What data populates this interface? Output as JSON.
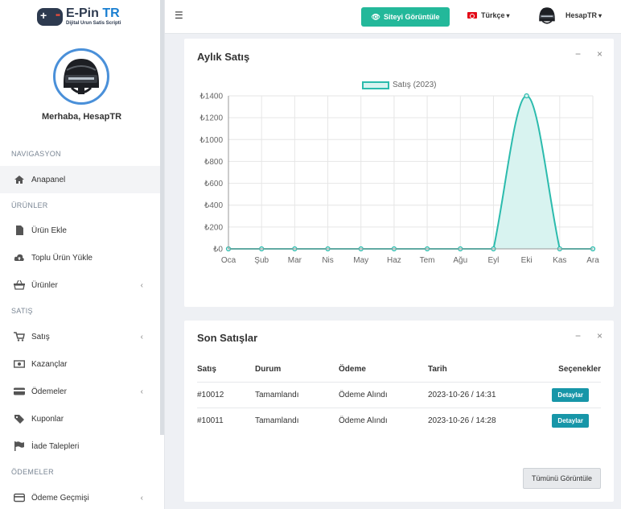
{
  "brand": {
    "title_main": "E-Pin ",
    "title_accent": "TR",
    "subtitle": "Dijital Urun Satis Scripti"
  },
  "sidebar": {
    "welcome": "Merhaba, HesapTR",
    "sections": [
      "NAVIGASYON",
      "ÜRÜNLER",
      "SATIŞ",
      "ÖDEMELER"
    ],
    "items": [
      {
        "label": "Anapanel",
        "icon": "home-icon"
      },
      {
        "label": "Ürün Ekle",
        "icon": "file-icon"
      },
      {
        "label": "Toplu Ürün Yükle",
        "icon": "cloud-upload-icon"
      },
      {
        "label": "Ürünler",
        "icon": "basket-icon"
      },
      {
        "label": "Satış",
        "icon": "cart-icon"
      },
      {
        "label": "Kazançlar",
        "icon": "money-icon"
      },
      {
        "label": "Ödemeler",
        "icon": "credit-card-icon"
      },
      {
        "label": "Kuponlar",
        "icon": "tag-icon"
      },
      {
        "label": "İade Talepleri",
        "icon": "flag-icon"
      },
      {
        "label": "Ödeme Geçmişi",
        "icon": "credit-card-icon"
      }
    ]
  },
  "topbar": {
    "view_site": "Siteyi Görüntüle",
    "language": "Türkçe",
    "username": "HesapTR"
  },
  "monthly_card": {
    "title": "Aylık Satış",
    "minimize": "−",
    "close": "×"
  },
  "chart_data": {
    "type": "line",
    "title": "",
    "xlabel": "",
    "ylabel": "",
    "categories": [
      "Oca",
      "Şub",
      "Mar",
      "Nis",
      "May",
      "Haz",
      "Tem",
      "Ağu",
      "Eyl",
      "Eki",
      "Kas",
      "Ara"
    ],
    "series": [
      {
        "name": "Satış (2023)",
        "values": [
          0,
          0,
          0,
          0,
          0,
          0,
          0,
          0,
          0,
          1400,
          0,
          0
        ]
      }
    ],
    "ylim": [
      0,
      1400
    ],
    "yticks": [
      "₺0",
      "₺200",
      "₺400",
      "₺600",
      "₺800",
      "₺1000",
      "₺1200",
      "₺1400"
    ],
    "grid": true,
    "legend": "top",
    "color": "#2bbbad",
    "fill": "#d8f3f0"
  },
  "recent_card": {
    "title": "Son Satışlar",
    "minimize": "−",
    "close": "×",
    "headers": [
      "Satış",
      "Durum",
      "Ödeme",
      "Tarih",
      "Seçenekler"
    ],
    "rows": [
      {
        "id": "#10012",
        "status": "Tamamlandı",
        "payment": "Ödeme Alındı",
        "date": "2023-10-26 / 14:31",
        "action": "Detaylar"
      },
      {
        "id": "#10011",
        "status": "Tamamlandı",
        "payment": "Ödeme Alındı",
        "date": "2023-10-26 / 14:28",
        "action": "Detaylar"
      }
    ],
    "view_all": "Tümünü Görüntüle"
  }
}
